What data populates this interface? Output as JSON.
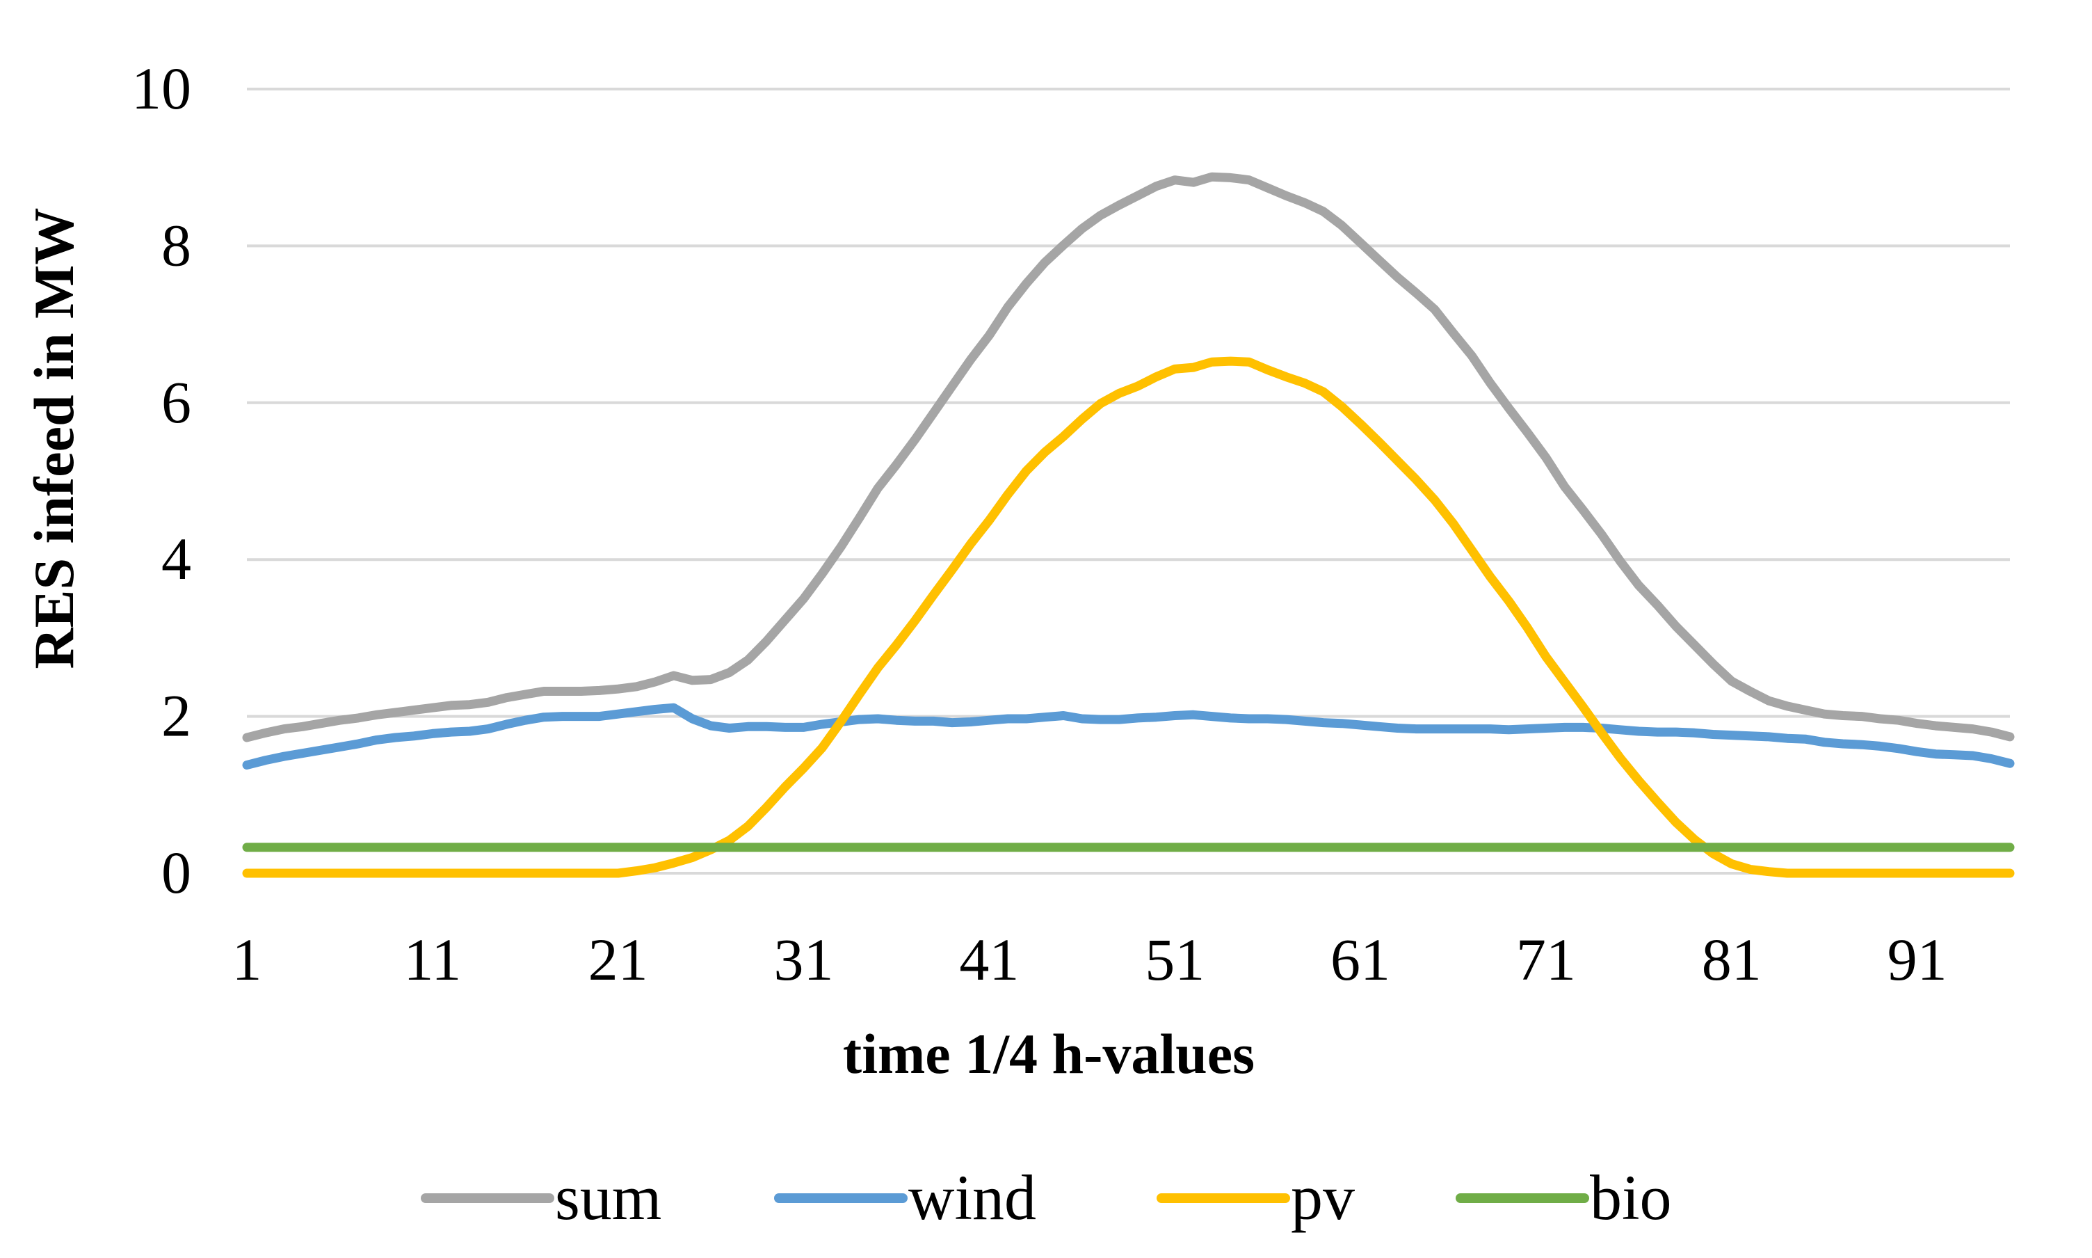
{
  "chart_data": {
    "type": "line",
    "title": "",
    "xlabel": "time 1/4 h-values",
    "ylabel": "RES infeed in MW",
    "x_range": [
      1,
      96
    ],
    "ylim": [
      0,
      10
    ],
    "y_ticks": [
      0,
      2,
      4,
      6,
      8,
      10
    ],
    "y_tick_labels": [
      "0",
      "2",
      "4",
      "6",
      "8",
      "10"
    ],
    "x_ticks": [
      1,
      11,
      21,
      31,
      41,
      51,
      61,
      71,
      81,
      91
    ],
    "x_tick_labels": [
      "1",
      "11",
      "21",
      "31",
      "41",
      "51",
      "61",
      "71",
      "81",
      "91"
    ],
    "grid": "horizontal",
    "legend_position": "bottom",
    "series": [
      {
        "name": "sum",
        "color": "#A5A5A5",
        "values": [
          1.73,
          1.79,
          1.84,
          1.87,
          1.91,
          1.95,
          1.98,
          2.02,
          2.05,
          2.08,
          2.11,
          2.14,
          2.15,
          2.18,
          2.24,
          2.28,
          2.32,
          2.32,
          2.32,
          2.33,
          2.35,
          2.38,
          2.44,
          2.52,
          2.46,
          2.47,
          2.56,
          2.72,
          2.96,
          3.23,
          3.5,
          3.82,
          4.16,
          4.53,
          4.91,
          5.21,
          5.53,
          5.87,
          6.21,
          6.55,
          6.86,
          7.22,
          7.52,
          7.79,
          8.01,
          8.22,
          8.39,
          8.52,
          8.64,
          8.76,
          8.84,
          8.81,
          8.88,
          8.87,
          8.84,
          8.74,
          8.64,
          8.55,
          8.44,
          8.26,
          8.04,
          7.82,
          7.6,
          7.4,
          7.19,
          6.89,
          6.6,
          6.25,
          5.93,
          5.62,
          5.3,
          4.93,
          4.63,
          4.32,
          3.98,
          3.67,
          3.42,
          3.15,
          2.91,
          2.67,
          2.45,
          2.32,
          2.2,
          2.13,
          2.08,
          2.03,
          2.01,
          2.0,
          1.97,
          1.95,
          1.91,
          1.88,
          1.86,
          1.84,
          1.8,
          1.74
        ]
      },
      {
        "name": "wind",
        "color": "#5B9BD5",
        "values": [
          1.38,
          1.44,
          1.49,
          1.53,
          1.57,
          1.61,
          1.65,
          1.7,
          1.73,
          1.75,
          1.78,
          1.8,
          1.81,
          1.84,
          1.9,
          1.95,
          1.99,
          2.0,
          2.0,
          2.0,
          2.03,
          2.06,
          2.09,
          2.11,
          1.97,
          1.88,
          1.85,
          1.87,
          1.87,
          1.86,
          1.86,
          1.9,
          1.93,
          1.96,
          1.97,
          1.95,
          1.94,
          1.94,
          1.92,
          1.93,
          1.95,
          1.97,
          1.97,
          1.99,
          2.01,
          1.97,
          1.96,
          1.96,
          1.98,
          1.99,
          2.01,
          2.02,
          2.0,
          1.98,
          1.97,
          1.97,
          1.96,
          1.94,
          1.92,
          1.91,
          1.89,
          1.87,
          1.85,
          1.84,
          1.84,
          1.84,
          1.84,
          1.84,
          1.83,
          1.84,
          1.85,
          1.86,
          1.86,
          1.85,
          1.83,
          1.81,
          1.8,
          1.8,
          1.79,
          1.77,
          1.76,
          1.75,
          1.74,
          1.72,
          1.71,
          1.67,
          1.65,
          1.64,
          1.62,
          1.59,
          1.55,
          1.52,
          1.51,
          1.5,
          1.46,
          1.4
        ]
      },
      {
        "name": "pv",
        "color": "#FFC000",
        "values": [
          0.0,
          0.0,
          0.0,
          0.0,
          0.0,
          0.0,
          0.0,
          0.0,
          0.0,
          0.0,
          0.0,
          0.0,
          0.0,
          0.0,
          0.0,
          0.0,
          0.0,
          0.0,
          0.0,
          0.0,
          0.0,
          0.03,
          0.07,
          0.13,
          0.2,
          0.3,
          0.42,
          0.6,
          0.84,
          1.1,
          1.34,
          1.6,
          1.93,
          2.28,
          2.62,
          2.91,
          3.22,
          3.55,
          3.87,
          4.2,
          4.5,
          4.83,
          5.13,
          5.37,
          5.57,
          5.79,
          5.99,
          6.12,
          6.21,
          6.33,
          6.43,
          6.45,
          6.52,
          6.53,
          6.52,
          6.42,
          6.33,
          6.25,
          6.14,
          5.95,
          5.73,
          5.5,
          5.26,
          5.02,
          4.76,
          4.46,
          4.12,
          3.78,
          3.47,
          3.13,
          2.76,
          2.44,
          2.12,
          1.79,
          1.47,
          1.18,
          0.91,
          0.65,
          0.43,
          0.25,
          0.12,
          0.05,
          0.02,
          0.0,
          0.0,
          0.0,
          0.0,
          0.0,
          0.0,
          0.0,
          0.0,
          0.0,
          0.0,
          0.0,
          0.0,
          0.0
        ]
      },
      {
        "name": "bio",
        "color": "#70AD47",
        "values": [
          0.33,
          0.33,
          0.33,
          0.33,
          0.33,
          0.33,
          0.33,
          0.33,
          0.33,
          0.33,
          0.33,
          0.33,
          0.33,
          0.33,
          0.33,
          0.33,
          0.33,
          0.33,
          0.33,
          0.33,
          0.33,
          0.33,
          0.33,
          0.33,
          0.33,
          0.33,
          0.33,
          0.33,
          0.33,
          0.33,
          0.33,
          0.33,
          0.33,
          0.33,
          0.33,
          0.33,
          0.33,
          0.33,
          0.33,
          0.33,
          0.33,
          0.33,
          0.33,
          0.33,
          0.33,
          0.33,
          0.33,
          0.33,
          0.33,
          0.33,
          0.33,
          0.33,
          0.33,
          0.33,
          0.33,
          0.33,
          0.33,
          0.33,
          0.33,
          0.33,
          0.33,
          0.33,
          0.33,
          0.33,
          0.33,
          0.33,
          0.33,
          0.33,
          0.33,
          0.33,
          0.33,
          0.33,
          0.33,
          0.33,
          0.33,
          0.33,
          0.33,
          0.33,
          0.33,
          0.33,
          0.33,
          0.33,
          0.33,
          0.33,
          0.33,
          0.33,
          0.33,
          0.33,
          0.33,
          0.33,
          0.33,
          0.33,
          0.33,
          0.33,
          0.33,
          0.33
        ]
      }
    ]
  }
}
